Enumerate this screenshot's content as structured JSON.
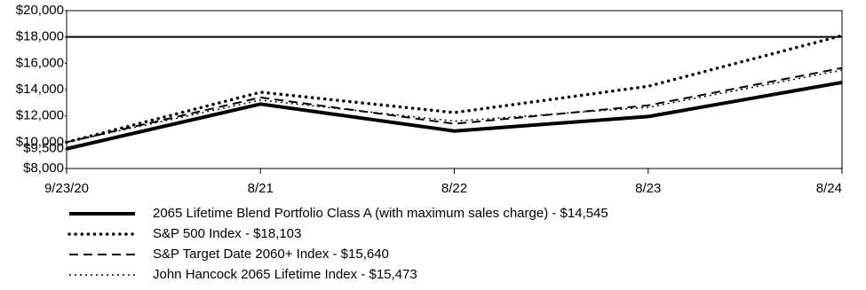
{
  "chart_data": {
    "type": "line",
    "categories": [
      "9/23/20",
      "8/21",
      "8/22",
      "8/23",
      "8/24"
    ],
    "ylim": [
      8000,
      20000
    ],
    "yticks": [
      {
        "value": 8000,
        "label": "$8,000"
      },
      {
        "value": 9500,
        "label": "$9,500"
      },
      {
        "value": 10000,
        "label": "$10,000"
      },
      {
        "value": 12000,
        "label": "$12,000"
      },
      {
        "value": 14000,
        "label": "$14,000"
      },
      {
        "value": 16000,
        "label": "$16,000"
      },
      {
        "value": 18000,
        "label": "$18,000"
      },
      {
        "value": 20000,
        "label": "$20,000"
      }
    ],
    "reference_lines": [
      18000
    ],
    "series": [
      {
        "name": "2065 Lifetime Blend Portfolio Class A (with maximum sales charge)  - $14,545",
        "color": "#000000",
        "style": "solid",
        "values": [
          9500,
          12900,
          10850,
          11950,
          14545
        ]
      },
      {
        "name": "S&P 500 Index - $18,103",
        "color": "#000000",
        "style": "dotted",
        "values": [
          10000,
          13800,
          12250,
          14250,
          18103
        ]
      },
      {
        "name": "S&P Target Date 2060+ Index - $15,640",
        "color": "#000000",
        "style": "dashed",
        "values": [
          10000,
          13400,
          11400,
          12800,
          15640
        ]
      },
      {
        "name": "John Hancock 2065 Lifetime Index - $15,473",
        "color": "#000000",
        "style": "fine-dotted",
        "values": [
          10000,
          13200,
          11600,
          12650,
          15473
        ]
      }
    ]
  }
}
